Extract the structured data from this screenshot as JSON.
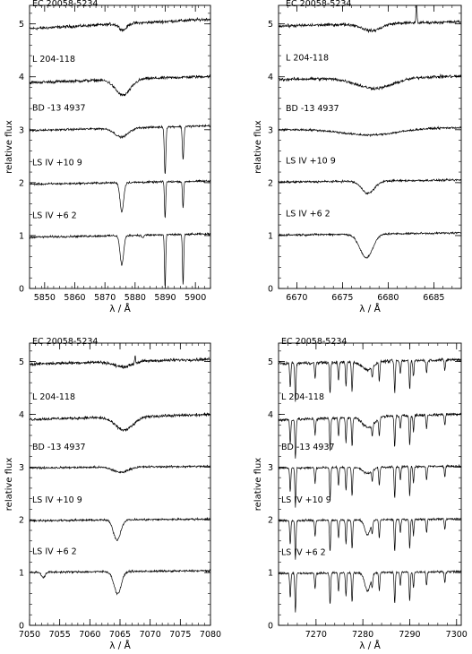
{
  "figure": {
    "panel_count": 4
  },
  "chart_data": [
    {
      "type": "line",
      "panel": "top-left",
      "xlabel": "λ / Å",
      "ylabel": "relative flux",
      "xlim": [
        5845,
        5905
      ],
      "ylim": [
        0,
        5.35
      ],
      "xticks": [
        5850,
        5860,
        5870,
        5880,
        5890,
        5900
      ],
      "yticks": [
        0,
        1,
        2,
        3,
        4,
        5
      ],
      "series": [
        {
          "name": "EC 20058-5234",
          "offset": 5.0,
          "slope": 0.003,
          "lines": [
            {
              "x": 5876,
              "depth": 0.12,
              "width": 1.2
            }
          ]
        },
        {
          "name": "L 204-118",
          "offset": 3.95,
          "slope": 0.002,
          "lines": [
            {
              "x": 5876,
              "depth": 0.3,
              "width": 2.5
            }
          ]
        },
        {
          "name": "BD -13 4937",
          "offset": 3.03,
          "slope": 0.0015,
          "lines": [
            {
              "x": 5875.5,
              "depth": 0.17,
              "width": 2.2
            },
            {
              "x": 5889.95,
              "depth": 0.9,
              "width": 0.25
            },
            {
              "x": 5895.92,
              "depth": 0.62,
              "width": 0.25
            }
          ]
        },
        {
          "name": "LS IV +10 9",
          "offset": 2.0,
          "slope": 0.001,
          "lines": [
            {
              "x": 5875.6,
              "depth": 0.55,
              "width": 0.6
            },
            {
              "x": 5889.95,
              "depth": 0.7,
              "width": 0.2
            },
            {
              "x": 5895.92,
              "depth": 0.5,
              "width": 0.2
            }
          ]
        },
        {
          "name": "LS IV +6 2",
          "offset": 1.0,
          "slope": 0.001,
          "lines": [
            {
              "x": 5875.6,
              "depth": 0.55,
              "width": 0.6
            },
            {
              "x": 5889.95,
              "depth": 1.0,
              "width": 0.2
            },
            {
              "x": 5895.92,
              "depth": 0.95,
              "width": 0.2
            },
            {
              "x": 5882.5,
              "depth": 0.05,
              "width": 0.3
            }
          ]
        }
      ]
    },
    {
      "type": "line",
      "panel": "top-right",
      "xlabel": "λ / Å",
      "ylabel": "relative flux",
      "xlim": [
        6668,
        6688
      ],
      "ylim": [
        0,
        5.35
      ],
      "xticks": [
        6670,
        6675,
        6680,
        6685
      ],
      "yticks": [
        0,
        1,
        2,
        3,
        4,
        5
      ],
      "series": [
        {
          "name": "EC 20058-5234",
          "offset": 5.0,
          "slope": 0.004,
          "lines": [
            {
              "x": 6678.2,
              "depth": 0.13,
              "width": 1.0
            },
            {
              "x": 6683.1,
              "depth": -0.5,
              "width": 0.05
            }
          ]
        },
        {
          "name": "L 204-118",
          "offset": 3.98,
          "slope": 0.003,
          "lines": [
            {
              "x": 6678.6,
              "depth": 0.2,
              "width": 2.0
            }
          ]
        },
        {
          "name": "BD -13 4937",
          "offset": 3.02,
          "slope": 0.002,
          "lines": [
            {
              "x": 6678.0,
              "depth": 0.12,
              "width": 3.0
            }
          ]
        },
        {
          "name": "LS IV +10 9",
          "offset": 2.03,
          "slope": 0.002,
          "lines": [
            {
              "x": 6677.8,
              "depth": 0.23,
              "width": 0.7
            }
          ]
        },
        {
          "name": "LS IV +6 2",
          "offset": 1.03,
          "slope": 0.002,
          "lines": [
            {
              "x": 6677.6,
              "depth": 0.45,
              "width": 0.7
            }
          ]
        }
      ]
    },
    {
      "type": "line",
      "panel": "bottom-left",
      "xlabel": "λ / Å",
      "ylabel": "relative flux",
      "xlim": [
        7050,
        7080
      ],
      "ylim": [
        0,
        5.35
      ],
      "xticks": [
        7050,
        7055,
        7060,
        7065,
        7070,
        7075,
        7080
      ],
      "yticks": [
        0,
        1,
        2,
        3,
        4,
        5
      ],
      "series": [
        {
          "name": "EC 20058-5234",
          "offset": 5.0,
          "slope": 0.003,
          "lines": [
            {
              "x": 7065.5,
              "depth": 0.1,
              "width": 1.5
            },
            {
              "x": 7067.5,
              "depth": -0.15,
              "width": 0.08
            }
          ]
        },
        {
          "name": "L 204-118",
          "offset": 3.95,
          "slope": 0.003,
          "lines": [
            {
              "x": 7065.7,
              "depth": 0.25,
              "width": 1.5
            }
          ]
        },
        {
          "name": "BD -13 4937",
          "offset": 3.0,
          "slope": 0.001,
          "lines": [
            {
              "x": 7065.1,
              "depth": 0.1,
              "width": 1.2
            }
          ]
        },
        {
          "name": "LS IV +10 9",
          "offset": 2.0,
          "slope": 0.001,
          "lines": [
            {
              "x": 7064.5,
              "depth": 0.38,
              "width": 0.6
            }
          ]
        },
        {
          "name": "LS IV +6 2",
          "offset": 1.02,
          "slope": 0.001,
          "lines": [
            {
              "x": 7064.6,
              "depth": 0.42,
              "width": 0.6
            },
            {
              "x": 7052.3,
              "depth": 0.1,
              "width": 0.3
            }
          ]
        }
      ]
    },
    {
      "type": "line",
      "panel": "bottom-right",
      "xlabel": "λ / Å",
      "ylabel": "relative flux",
      "xlim": [
        7262,
        7301
      ],
      "ylim": [
        0,
        5.35
      ],
      "xticks": [
        7270,
        7280,
        7290,
        7300
      ],
      "yticks": [
        0,
        1,
        2,
        3,
        4,
        5
      ],
      "telluric": [
        {
          "x": 7264.5,
          "depth": 0.45
        },
        {
          "x": 7265.6,
          "depth": 0.75
        },
        {
          "x": 7269.8,
          "depth": 0.3
        },
        {
          "x": 7273.0,
          "depth": 0.6
        },
        {
          "x": 7274.8,
          "depth": 0.35
        },
        {
          "x": 7276.4,
          "depth": 0.45
        },
        {
          "x": 7277.7,
          "depth": 0.55
        },
        {
          "x": 7282.0,
          "depth": 0.2
        },
        {
          "x": 7283.5,
          "depth": 0.35
        },
        {
          "x": 7286.8,
          "depth": 0.6
        },
        {
          "x": 7288.0,
          "depth": 0.25
        },
        {
          "x": 7290.0,
          "depth": 0.55
        },
        {
          "x": 7290.8,
          "depth": 0.3
        },
        {
          "x": 7293.6,
          "depth": 0.25
        },
        {
          "x": 7297.5,
          "depth": 0.2
        }
      ],
      "series": [
        {
          "name": "EC 20058-5234",
          "offset": 5.0,
          "slope": 0.002,
          "lines": [
            {
              "x": 7281.0,
              "depth": 0.15,
              "width": 1.2
            }
          ]
        },
        {
          "name": "L 204-118",
          "offset": 3.95,
          "slope": 0.003,
          "lines": [
            {
              "x": 7281.2,
              "depth": 0.2,
              "width": 1.2
            }
          ]
        },
        {
          "name": "BD -13 4937",
          "offset": 3.0,
          "slope": 0.001,
          "lines": [
            {
              "x": 7281.0,
              "depth": 0.12,
              "width": 1.0
            }
          ]
        },
        {
          "name": "LS IV +10 9",
          "offset": 2.0,
          "slope": 0.001,
          "lines": [
            {
              "x": 7281.0,
              "depth": 0.28,
              "width": 0.6
            }
          ]
        },
        {
          "name": "LS IV +6 2",
          "offset": 1.0,
          "slope": 0.001,
          "lines": [
            {
              "x": 7281.0,
              "depth": 0.35,
              "width": 0.6
            }
          ]
        }
      ]
    }
  ]
}
